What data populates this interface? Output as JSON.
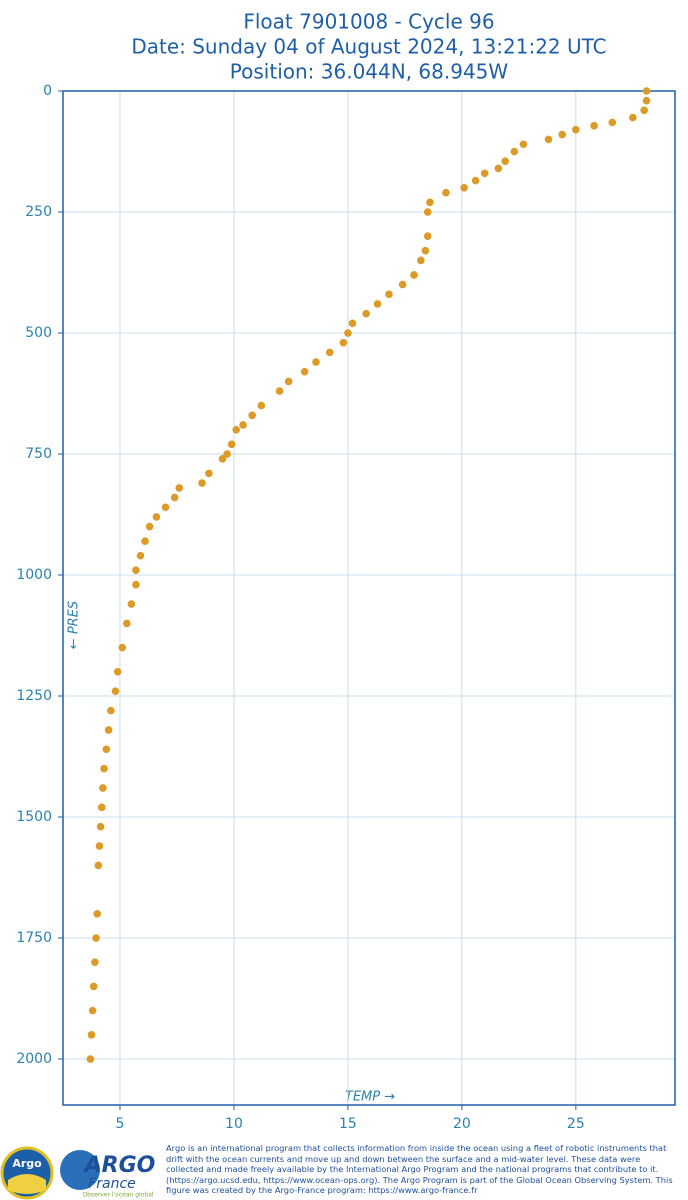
{
  "chart_data": {
    "type": "scatter",
    "title": [
      "Float 7901008 - Cycle 96",
      "Date: Sunday 04 of August 2024, 13:21:22 UTC",
      "Position: 36.044N, 68.945W"
    ],
    "xlabel": "TEMP →",
    "ylabel": "← PRES",
    "x": [
      28.1,
      28.1,
      28.0,
      27.5,
      26.6,
      25.8,
      25.0,
      24.4,
      23.8,
      22.7,
      22.3,
      21.9,
      21.6,
      21.0,
      20.6,
      20.1,
      19.3,
      18.6,
      18.5,
      18.5,
      18.4,
      18.2,
      17.9,
      17.4,
      16.8,
      16.3,
      15.8,
      15.2,
      15.0,
      14.8,
      14.2,
      13.6,
      13.1,
      12.4,
      12.0,
      11.2,
      10.8,
      10.4,
      10.1,
      9.9,
      9.7,
      9.5,
      8.9,
      8.6,
      7.6,
      7.4,
      7.0,
      6.6,
      6.3,
      6.1,
      5.9,
      5.7,
      5.7,
      5.5,
      5.3,
      5.1,
      4.9,
      4.8,
      4.6,
      4.5,
      4.4,
      4.3,
      4.25,
      4.2,
      4.15,
      4.1,
      4.05,
      4.0,
      3.95,
      3.9,
      3.85,
      3.8,
      3.75,
      3.7
    ],
    "values": [
      0,
      20,
      40,
      55,
      65,
      72,
      80,
      90,
      100,
      110,
      125,
      145,
      160,
      170,
      185,
      200,
      210,
      230,
      250,
      300,
      330,
      350,
      380,
      400,
      420,
      440,
      460,
      480,
      500,
      520,
      540,
      560,
      580,
      600,
      620,
      650,
      670,
      690,
      700,
      730,
      750,
      760,
      790,
      810,
      820,
      840,
      860,
      880,
      900,
      930,
      960,
      990,
      1020,
      1060,
      1100,
      1150,
      1200,
      1240,
      1280,
      1320,
      1360,
      1400,
      1440,
      1480,
      1520,
      1560,
      1600,
      1700,
      1750,
      1800,
      1850,
      1900,
      1950,
      2000
    ],
    "color": "#dc9a27",
    "xlim": [
      2.5,
      29.35
    ],
    "xticks": [
      5,
      10,
      15,
      20,
      25
    ],
    "ylim": [
      0,
      2095
    ],
    "yticks": [
      0,
      250,
      500,
      750,
      1000,
      1250,
      1500,
      1750,
      2000
    ],
    "y_inverted": true,
    "grid": true
  },
  "footer": {
    "text": "Argo is an international program that collects information from inside the ocean using a fleet of robotic instruments that drift with the ocean currents and move up and down between the surface and a mid-water level. These data were collected and made freely available by the International Argo Program and the national programs that contribute to it. (https://argo.ucsd.edu, https://www.ocean-ops.org). The Argo Program is part of the Global Ocean Observing System. This figure was created by the Argo-France program: https://www.argo-france.fr",
    "logo_argo": "Argo",
    "logo_argo_france": "ARGO",
    "logo_france": "France",
    "logo_tagline": "Observer l'océan global"
  }
}
